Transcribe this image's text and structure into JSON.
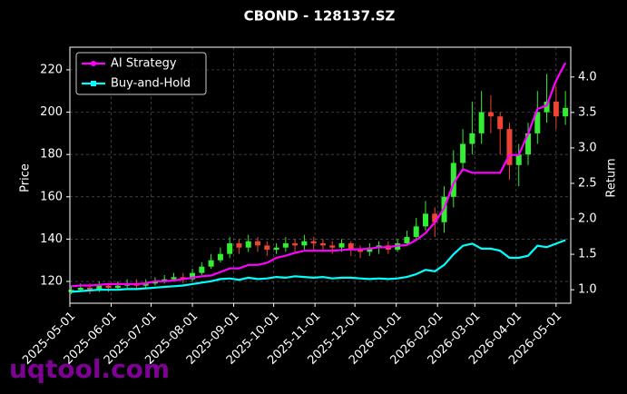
{
  "chart_data": {
    "type": "candlestick",
    "title": "CBOND - 128137.SZ",
    "ylabel": "Price",
    "y2label": "Return",
    "watermark": "uqtool.com",
    "legend": "upper left",
    "grid": true,
    "up_color": "#33ee33",
    "down_color": "#ee4433",
    "xlim": [
      "2025-05-01",
      "2026-05-12"
    ],
    "xticks": [
      "2025-05-01",
      "2025-06-01",
      "2025-07-01",
      "2025-08-01",
      "2025-09-01",
      "2025-10-01",
      "2025-11-01",
      "2025-12-01",
      "2026-01-01",
      "2026-02-01",
      "2026-03-01",
      "2026-04-01",
      "2026-05-01"
    ],
    "ylim": [
      109.7,
      230.7
    ],
    "yticks": [
      120,
      140,
      160,
      180,
      200,
      220
    ],
    "y2lim": [
      0.81,
      4.42
    ],
    "y2ticks": [
      {
        "value": 1,
        "label": "1.0"
      },
      1.5,
      {
        "value": 2,
        "label": "2.0"
      },
      2.5,
      {
        "value": 3,
        "label": "3.0"
      },
      3.5,
      {
        "value": 4,
        "label": "4.0"
      }
    ],
    "x": [
      "2025-05-02",
      "2025-05-09",
      "2025-05-16",
      "2025-05-23",
      "2025-05-30",
      "2025-06-06",
      "2025-06-13",
      "2025-06-20",
      "2025-06-27",
      "2025-07-04",
      "2025-07-11",
      "2025-07-18",
      "2025-07-25",
      "2025-08-01",
      "2025-08-08",
      "2025-08-15",
      "2025-08-22",
      "2025-08-29",
      "2025-09-05",
      "2025-09-12",
      "2025-09-19",
      "2025-09-26",
      "2025-10-03",
      "2025-10-10",
      "2025-10-17",
      "2025-10-24",
      "2025-10-31",
      "2025-11-07",
      "2025-11-14",
      "2025-11-21",
      "2025-11-28",
      "2025-12-05",
      "2025-12-12",
      "2025-12-19",
      "2025-12-26",
      "2026-01-02",
      "2026-01-09",
      "2026-01-16",
      "2026-01-23",
      "2026-01-30",
      "2026-02-06",
      "2026-02-13",
      "2026-02-20",
      "2026-02-27",
      "2026-03-06",
      "2026-03-13",
      "2026-03-20",
      "2026-03-27",
      "2026-04-03",
      "2026-04-10",
      "2026-04-17",
      "2026-04-24",
      "2026-05-01",
      "2026-05-08"
    ],
    "open": [
      115,
      116,
      117,
      116,
      118,
      117,
      118,
      119,
      118,
      119,
      120,
      121,
      122,
      121,
      124,
      127,
      130,
      133,
      138,
      136,
      139,
      137,
      135,
      136,
      138,
      137,
      139,
      138,
      137,
      136,
      138,
      135,
      134,
      136,
      137,
      135,
      138,
      141,
      146,
      152,
      148,
      160,
      176,
      185,
      190,
      200,
      198,
      192,
      175,
      180,
      190,
      200,
      205,
      198
    ],
    "high": [
      118,
      119,
      119,
      120,
      119,
      120,
      121,
      121,
      121,
      122,
      123,
      124,
      124,
      126,
      129,
      133,
      136,
      141,
      140,
      142,
      141,
      139,
      138,
      141,
      140,
      142,
      141,
      140,
      139,
      140,
      139,
      137,
      138,
      139,
      139,
      140,
      144,
      150,
      158,
      155,
      165,
      182,
      192,
      205,
      210,
      208,
      200,
      195,
      185,
      195,
      210,
      218,
      212,
      210
    ],
    "low": [
      114,
      115,
      114,
      115,
      115,
      116,
      117,
      116,
      117,
      118,
      119,
      120,
      119,
      120,
      123,
      126,
      129,
      131,
      133,
      134,
      134,
      132,
      133,
      134,
      134,
      135,
      135,
      134,
      133,
      134,
      132,
      131,
      132,
      133,
      133,
      134,
      137,
      140,
      144,
      141,
      143,
      155,
      172,
      180,
      185,
      190,
      180,
      168,
      165,
      175,
      185,
      195,
      192,
      194
    ],
    "close": [
      116,
      117,
      116,
      118,
      117,
      118,
      119,
      118,
      119,
      120,
      121,
      122,
      121,
      124,
      127,
      130,
      133,
      138,
      136,
      139,
      137,
      135,
      136,
      138,
      137,
      139,
      138,
      137,
      136,
      138,
      135,
      134,
      136,
      137,
      135,
      138,
      141,
      146,
      152,
      148,
      160,
      176,
      185,
      190,
      200,
      198,
      192,
      175,
      180,
      190,
      200,
      205,
      198,
      202
    ],
    "series": [
      {
        "name": "AI Strategy",
        "color": "#ff00ff",
        "axis": "y2",
        "values": [
          1.05,
          1.06,
          1.06,
          1.07,
          1.08,
          1.08,
          1.08,
          1.08,
          1.09,
          1.12,
          1.12,
          1.13,
          1.15,
          1.17,
          1.19,
          1.2,
          1.25,
          1.3,
          1.3,
          1.35,
          1.35,
          1.38,
          1.45,
          1.48,
          1.52,
          1.55,
          1.55,
          1.55,
          1.55,
          1.56,
          1.57,
          1.57,
          1.58,
          1.6,
          1.6,
          1.62,
          1.63,
          1.7,
          1.8,
          1.95,
          2.15,
          2.5,
          2.7,
          2.65,
          2.65,
          2.65,
          2.65,
          2.9,
          2.9,
          3.2,
          3.55,
          3.6,
          3.95,
          4.2
        ]
      },
      {
        "name": "Buy-and-Hold",
        "color": "#00ffff",
        "axis": "y2",
        "values": [
          0.97,
          0.98,
          0.99,
          1.0,
          1.0,
          1.0,
          1.01,
          1.01,
          1.02,
          1.03,
          1.04,
          1.05,
          1.06,
          1.08,
          1.1,
          1.12,
          1.15,
          1.16,
          1.14,
          1.17,
          1.15,
          1.16,
          1.18,
          1.17,
          1.19,
          1.18,
          1.17,
          1.18,
          1.16,
          1.17,
          1.17,
          1.16,
          1.15,
          1.16,
          1.15,
          1.16,
          1.18,
          1.22,
          1.28,
          1.26,
          1.35,
          1.5,
          1.62,
          1.65,
          1.58,
          1.58,
          1.55,
          1.45,
          1.45,
          1.48,
          1.62,
          1.6,
          1.65,
          1.7
        ]
      }
    ]
  }
}
